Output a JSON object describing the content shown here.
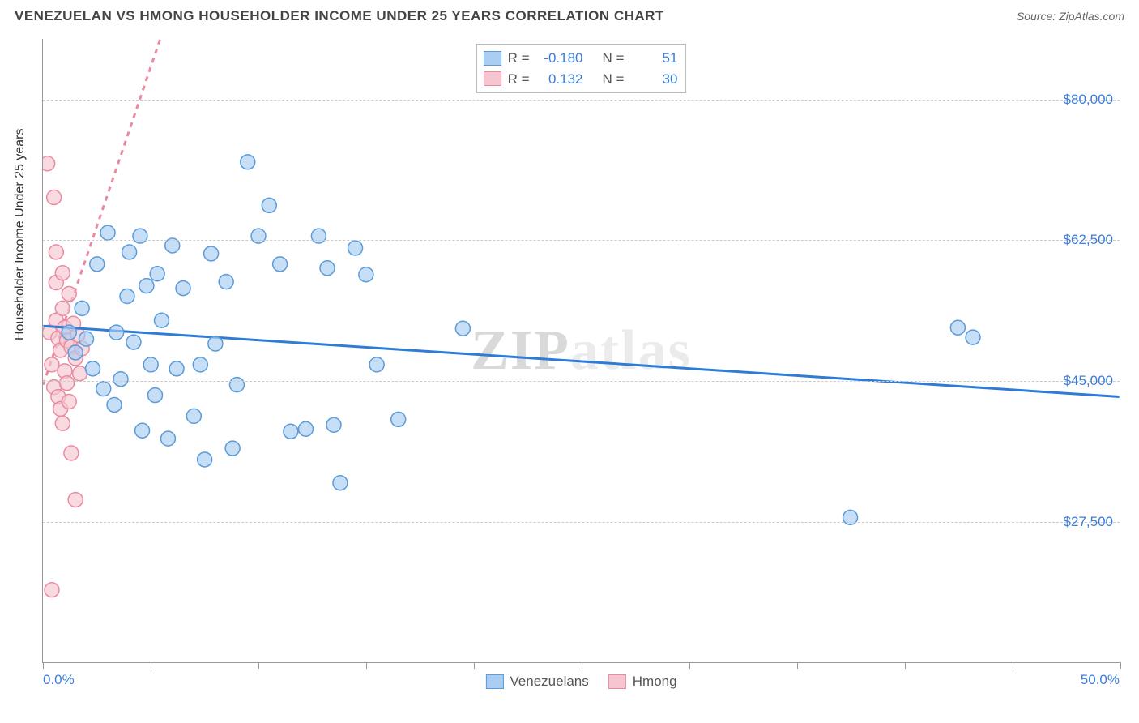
{
  "header": {
    "title": "VENEZUELAN VS HMONG HOUSEHOLDER INCOME UNDER 25 YEARS CORRELATION CHART",
    "source_label": "Source:",
    "source_name": "ZipAtlas.com"
  },
  "chart": {
    "type": "scatter",
    "ylabel": "Householder Income Under 25 years",
    "xlim": [
      0,
      50
    ],
    "ylim": [
      10000,
      87500
    ],
    "xlim_labels": [
      "0.0%",
      "50.0%"
    ],
    "yticks": [
      27500,
      45000,
      62500,
      80000
    ],
    "ytick_labels": [
      "$27,500",
      "$45,000",
      "$62,500",
      "$80,000"
    ],
    "xtick_positions": [
      0,
      5,
      10,
      15,
      20,
      25,
      30,
      35,
      40,
      45,
      50
    ],
    "background_color": "#ffffff",
    "grid_color": "#cccccc",
    "axis_color": "#999999",
    "marker_radius": 9,
    "marker_stroke_width": 1.5,
    "trend_line_width": 3,
    "watermark": "ZIPatlas",
    "series": {
      "venezuelans": {
        "label": "Venezuelans",
        "fill_color": "#a9cdf3",
        "stroke_color": "#5a9bd8",
        "trend_color": "#2e7cd6",
        "r_value": "-0.180",
        "n_value": "51",
        "trend": {
          "x1": 0,
          "y1": 51800,
          "x2": 50,
          "y2": 43000
        },
        "points": [
          [
            1.2,
            51000
          ],
          [
            1.5,
            48500
          ],
          [
            1.8,
            54000
          ],
          [
            2.0,
            50200
          ],
          [
            2.3,
            46500
          ],
          [
            2.5,
            59500
          ],
          [
            3.0,
            63400
          ],
          [
            3.4,
            51000
          ],
          [
            3.6,
            45200
          ],
          [
            4.0,
            61000
          ],
          [
            4.2,
            49800
          ],
          [
            4.5,
            63000
          ],
          [
            4.8,
            56800
          ],
          [
            5.0,
            47000
          ],
          [
            5.3,
            58300
          ],
          [
            5.5,
            52500
          ],
          [
            5.8,
            37800
          ],
          [
            6.2,
            46500
          ],
          [
            6.5,
            56500
          ],
          [
            7.0,
            40600
          ],
          [
            7.3,
            47000
          ],
          [
            7.5,
            35200
          ],
          [
            7.8,
            60800
          ],
          [
            8.0,
            49600
          ],
          [
            8.5,
            57300
          ],
          [
            8.8,
            36600
          ],
          [
            9.5,
            72200
          ],
          [
            10.0,
            63000
          ],
          [
            10.5,
            66800
          ],
          [
            11.0,
            59500
          ],
          [
            11.5,
            38700
          ],
          [
            12.2,
            39000
          ],
          [
            12.8,
            63000
          ],
          [
            13.2,
            59000
          ],
          [
            13.5,
            39500
          ],
          [
            13.8,
            32300
          ],
          [
            14.5,
            61500
          ],
          [
            15.0,
            58200
          ],
          [
            15.5,
            47000
          ],
          [
            16.5,
            40200
          ],
          [
            19.5,
            51500
          ],
          [
            37.5,
            28000
          ],
          [
            42.5,
            51600
          ],
          [
            43.2,
            50400
          ],
          [
            2.8,
            44000
          ],
          [
            3.3,
            42000
          ],
          [
            6.0,
            61800
          ],
          [
            4.6,
            38800
          ],
          [
            9.0,
            44500
          ],
          [
            3.9,
            55500
          ],
          [
            5.2,
            43200
          ]
        ]
      },
      "hmong": {
        "label": "Hmong",
        "fill_color": "#f6c6d0",
        "stroke_color": "#e98ba0",
        "trend_color": "#e98ba0",
        "r_value": "0.132",
        "n_value": "30",
        "trend": {
          "x1": 0,
          "y1": 44500,
          "x2": 5.5,
          "y2": 88000
        },
        "trend_dashed": true,
        "points": [
          [
            0.2,
            72000
          ],
          [
            0.3,
            51000
          ],
          [
            0.4,
            47000
          ],
          [
            0.5,
            67800
          ],
          [
            0.5,
            44200
          ],
          [
            0.6,
            52500
          ],
          [
            0.6,
            57200
          ],
          [
            0.7,
            43000
          ],
          [
            0.7,
            50300
          ],
          [
            0.8,
            41500
          ],
          [
            0.8,
            48800
          ],
          [
            0.9,
            39700
          ],
          [
            0.9,
            54000
          ],
          [
            1.0,
            46200
          ],
          [
            1.0,
            51600
          ],
          [
            1.1,
            44700
          ],
          [
            1.1,
            50000
          ],
          [
            1.2,
            42400
          ],
          [
            1.3,
            49200
          ],
          [
            1.3,
            36000
          ],
          [
            1.4,
            52100
          ],
          [
            1.5,
            47800
          ],
          [
            1.5,
            30200
          ],
          [
            1.6,
            50700
          ],
          [
            1.7,
            45900
          ],
          [
            1.8,
            49000
          ],
          [
            0.4,
            19000
          ],
          [
            0.6,
            61000
          ],
          [
            1.2,
            55800
          ],
          [
            0.9,
            58400
          ]
        ]
      }
    },
    "stat_legend": {
      "r_label": "R =",
      "n_label": "N ="
    }
  }
}
